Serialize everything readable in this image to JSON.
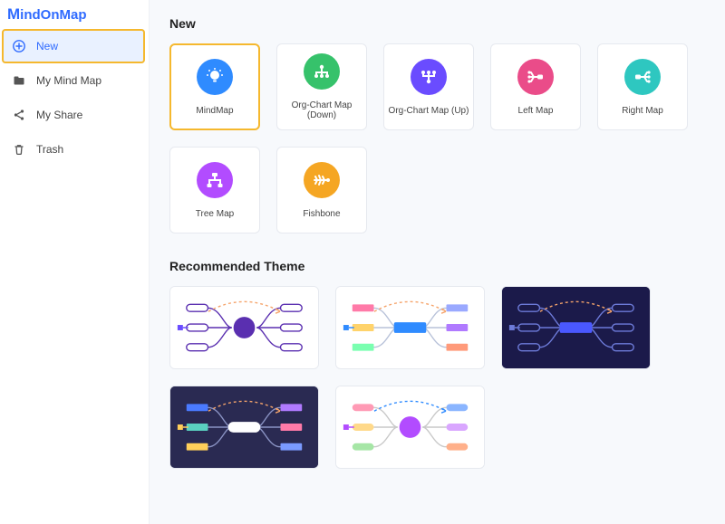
{
  "brand": {
    "name": "MindOnMap",
    "color": "#2f6bff"
  },
  "sidebar": {
    "items": [
      {
        "label": "New",
        "icon": "plus-circle",
        "active": true,
        "highlight": true
      },
      {
        "label": "My Mind Map",
        "icon": "folder",
        "active": false,
        "highlight": false
      },
      {
        "label": "My Share",
        "icon": "share",
        "active": false,
        "highlight": false
      },
      {
        "label": "Trash",
        "icon": "trash",
        "active": false,
        "highlight": false
      }
    ]
  },
  "sections": {
    "new_title": "New",
    "recommended_title": "Recommended Theme"
  },
  "templates": [
    {
      "label": "MindMap",
      "icon": "bulb",
      "bg": "#2f8bff",
      "selected": true
    },
    {
      "label": "Org-Chart Map (Down)",
      "icon": "org-down",
      "bg": "#36c26b",
      "selected": false
    },
    {
      "label": "Org-Chart Map (Up)",
      "icon": "org-up",
      "bg": "#6a4cff",
      "selected": false
    },
    {
      "label": "Left Map",
      "icon": "left-map",
      "bg": "#ea4c89",
      "selected": false
    },
    {
      "label": "Right Map",
      "icon": "right-map",
      "bg": "#2ec7c0",
      "selected": false
    },
    {
      "label": "Tree Map",
      "icon": "tree-map",
      "bg": "#b24cff",
      "selected": false
    },
    {
      "label": "Fishbone",
      "icon": "fishbone",
      "bg": "#f5a623",
      "selected": false
    }
  ],
  "themes": [
    {
      "id": "light-purple",
      "bg": "#ffffff",
      "center_shape": "circle",
      "center_color": "#5a2fb0",
      "node_shape": "pill-outline",
      "node_stroke": "#5a2fb0",
      "node_fill": "none",
      "connector_color": "#5a2fb0",
      "arc_color": "#f5a46b",
      "arrow_color": "#6a4cff",
      "layout": "both"
    },
    {
      "id": "light-rainbow-bars",
      "bg": "#ffffff",
      "center_shape": "bar",
      "center_color": "#2f8bff",
      "node_shape": "bar",
      "node_colors": [
        "#ff7aa8",
        "#ffd36b",
        "#7affb0",
        "#9aa9ff",
        "#b07aff",
        "#ff9a7a"
      ],
      "connector_color": "#b8c2d9",
      "arc_color": "#f5a46b",
      "arrow_color": "#2f8bff",
      "layout": "both"
    },
    {
      "id": "dark-navy",
      "bg": "#1b1a4a",
      "center_shape": "bar",
      "center_color": "#4a58ff",
      "node_shape": "pill-outline",
      "node_stroke": "#6d7bd9",
      "node_fill": "none",
      "connector_color": "#6d7bd9",
      "arc_color": "#f5a46b",
      "arrow_color": "#6d7bd9",
      "layout": "both"
    },
    {
      "id": "dark-indigo-bars",
      "bg": "#2a2a52",
      "center_shape": "pill",
      "center_color": "#ffffff",
      "node_shape": "bar",
      "node_colors": [
        "#4a7aff",
        "#5ad1c0",
        "#ffcf5a",
        "#b07aff",
        "#ff7aa8",
        "#7a9aff"
      ],
      "connector_color": "#8a93c4",
      "arc_color": "#f5a46b",
      "arrow_color": "#ffcf5a",
      "layout": "both"
    },
    {
      "id": "light-pastel-circle",
      "bg": "#ffffff",
      "center_shape": "circle",
      "center_color": "#b24cff",
      "node_shape": "pill",
      "node_colors": [
        "#ff9ab5",
        "#ffd98a",
        "#a6e6a6",
        "#8ab5ff",
        "#d9a6ff",
        "#ffb08a"
      ],
      "connector_color": "#c9c9c9",
      "arc_color": "#2f8bff",
      "arrow_color": "#b24cff",
      "layout": "both"
    }
  ],
  "colors": {
    "highlight_border": "#f5b82e",
    "card_border": "#e6e9ef",
    "page_bg": "#f7f9fc"
  }
}
